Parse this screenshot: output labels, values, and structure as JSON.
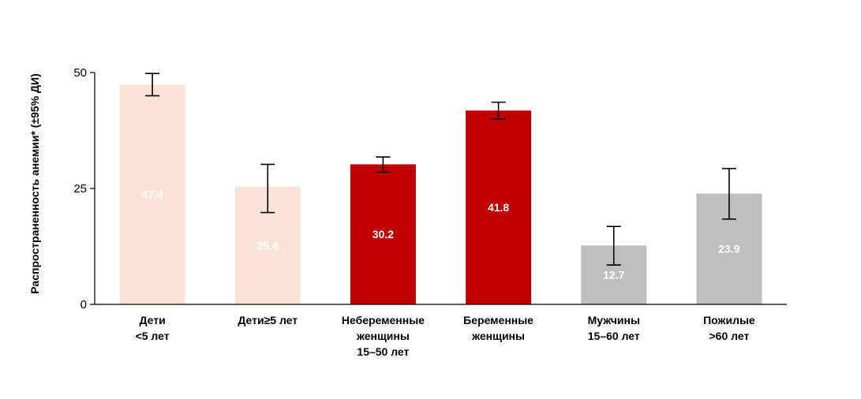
{
  "chart_data": {
    "type": "bar",
    "title": "",
    "xlabel": "",
    "ylabel": "Распространенность анемии* (±95% ДИ)",
    "ylim": [
      0,
      50
    ],
    "yticks": [
      "0",
      "25",
      "50"
    ],
    "grid": false,
    "categories": [
      [
        "Дети",
        "<5 лет"
      ],
      [
        "Дети≥5 лет"
      ],
      [
        "Небеременные",
        "женщины",
        "15–50 лет"
      ],
      [
        "Беременные",
        "женщины"
      ],
      [
        "Мужчины",
        "15–60 лет"
      ],
      [
        "Пожилые",
        ">60 лет"
      ]
    ],
    "values": [
      47.4,
      25.4,
      30.2,
      41.8,
      12.7,
      23.9
    ],
    "value_labels": [
      "47.4",
      "25.4",
      "30.2",
      "41.8",
      "12.7",
      "23.9"
    ],
    "error_low": [
      45.0,
      19.8,
      28.5,
      40.0,
      8.5,
      18.4
    ],
    "error_high": [
      49.8,
      30.2,
      31.8,
      43.6,
      16.8,
      29.3
    ],
    "colors": [
      "#fbe4d7",
      "#fbe4d7",
      "#c00000",
      "#c00000",
      "#bfbfbf",
      "#bfbfbf"
    ]
  }
}
